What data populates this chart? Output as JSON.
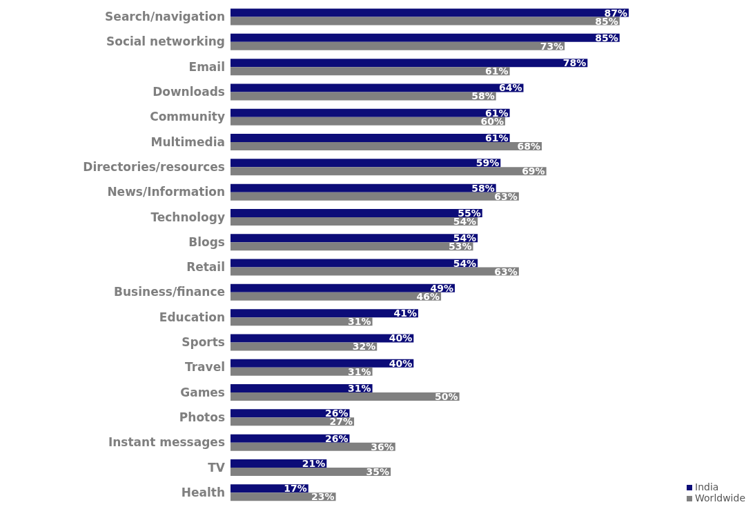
{
  "chart_data": {
    "type": "bar",
    "orientation": "horizontal",
    "categories": [
      "Search/navigation",
      "Social networking",
      "Email",
      "Downloads",
      "Community",
      "Multimedia",
      "Directories/resources",
      "News/Information",
      "Technology",
      "Blogs",
      "Retail",
      "Business/finance",
      "Education",
      "Sports",
      "Travel",
      "Games",
      "Photos",
      "Instant messages",
      "TV",
      "Health"
    ],
    "series": [
      {
        "name": "India",
        "color": "#0c0c78",
        "values": [
          87,
          85,
          78,
          64,
          61,
          61,
          59,
          58,
          55,
          54,
          54,
          49,
          41,
          40,
          40,
          31,
          26,
          26,
          21,
          17
        ],
        "value_labels": [
          "87%",
          "85%",
          "78%",
          "64%",
          "61%",
          "61%",
          "59%",
          "58%",
          "55%",
          "54%",
          "54%",
          "49%",
          "41%",
          "40%",
          "40%",
          "31%",
          "26%",
          "26%",
          "21%",
          "17%"
        ]
      },
      {
        "name": "Worldwide",
        "color": "#808080",
        "values": [
          85,
          73,
          61,
          58,
          60,
          68,
          69,
          63,
          54,
          53,
          63,
          46,
          31,
          32,
          31,
          50,
          27,
          36,
          35,
          23
        ],
        "value_labels": [
          "85%",
          "73%",
          "61%",
          "58%",
          "60%",
          "68%",
          "69%",
          "63%",
          "54%",
          "53%",
          "63%",
          "46%",
          "31%",
          "32%",
          "31%",
          "50%",
          "27%",
          "36%",
          "35%",
          "23%"
        ]
      }
    ],
    "legend": "bottom right",
    "grid": false
  }
}
